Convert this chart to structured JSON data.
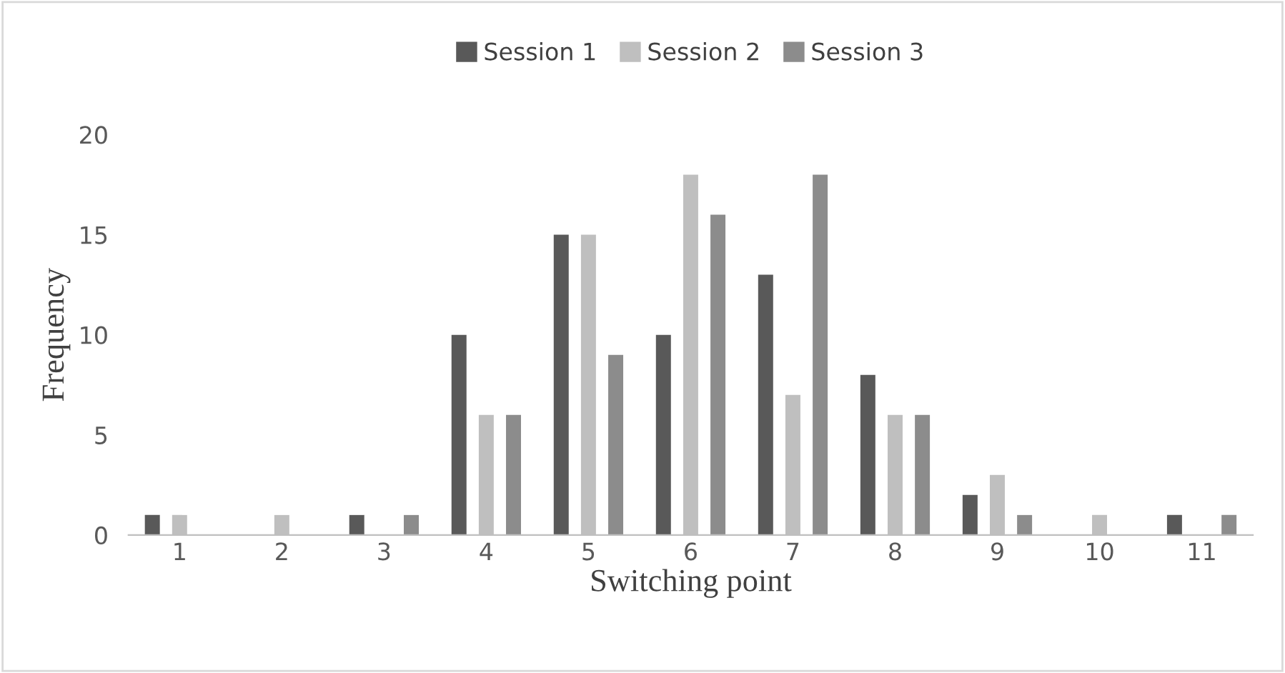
{
  "chart_data": {
    "type": "bar",
    "xlabel": "Switching point",
    "ylabel": "Frequency",
    "categories": [
      "1",
      "2",
      "3",
      "4",
      "5",
      "6",
      "7",
      "8",
      "9",
      "10",
      "11"
    ],
    "series": [
      {
        "name": "Session 1",
        "color": "#595959",
        "values": [
          1,
          0,
          1,
          10,
          15,
          10,
          13,
          8,
          2,
          0,
          1
        ]
      },
      {
        "name": "Session 2",
        "color": "#bfbfbf",
        "values": [
          1,
          1,
          0,
          6,
          15,
          18,
          7,
          6,
          3,
          1,
          0
        ]
      },
      {
        "name": "Session 3",
        "color": "#8c8c8c",
        "values": [
          0,
          0,
          1,
          6,
          9,
          16,
          18,
          6,
          1,
          0,
          1
        ]
      }
    ],
    "ylim": [
      0,
      20
    ],
    "yticks": [
      0,
      5,
      10,
      15,
      20
    ],
    "grid": false,
    "legend": "top"
  }
}
